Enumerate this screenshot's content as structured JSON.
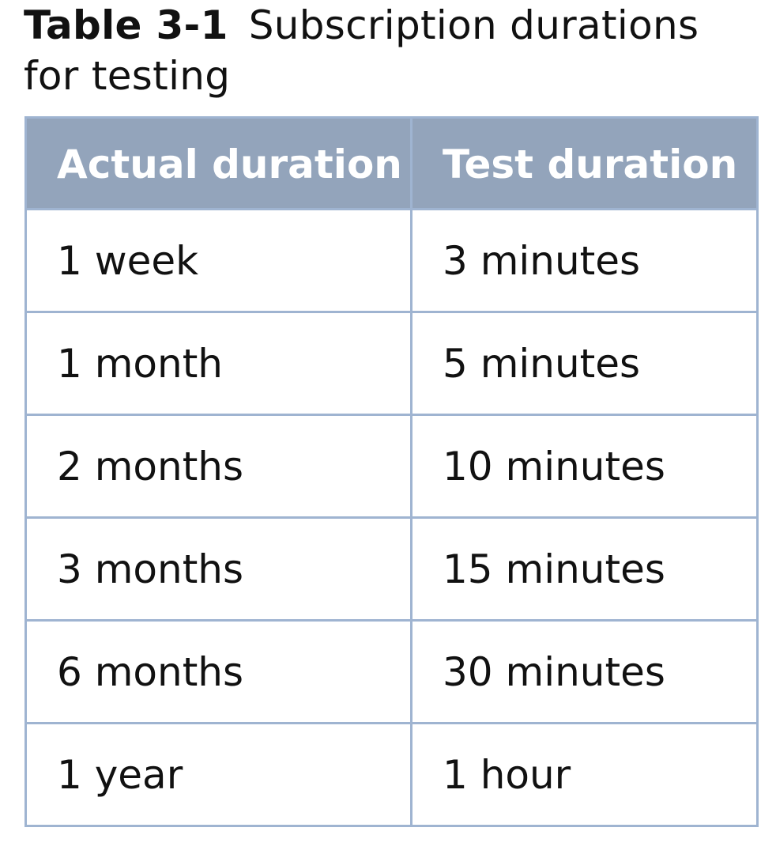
{
  "caption": {
    "label": "Table 3-1",
    "title": "Subscription durations for testing"
  },
  "table": {
    "headers": [
      "Actual duration",
      "Test duration"
    ],
    "rows": [
      [
        "1 week",
        "3 minutes"
      ],
      [
        "1 month",
        "5 minutes"
      ],
      [
        "2 months",
        "10 minutes"
      ],
      [
        "3 months",
        "15 minutes"
      ],
      [
        "6 months",
        "30 minutes"
      ],
      [
        "1 year",
        "1 hour"
      ]
    ],
    "colors": {
      "header_bg": "#93a4bb",
      "border": "#9fb4d1",
      "header_text": "#ffffff"
    }
  }
}
